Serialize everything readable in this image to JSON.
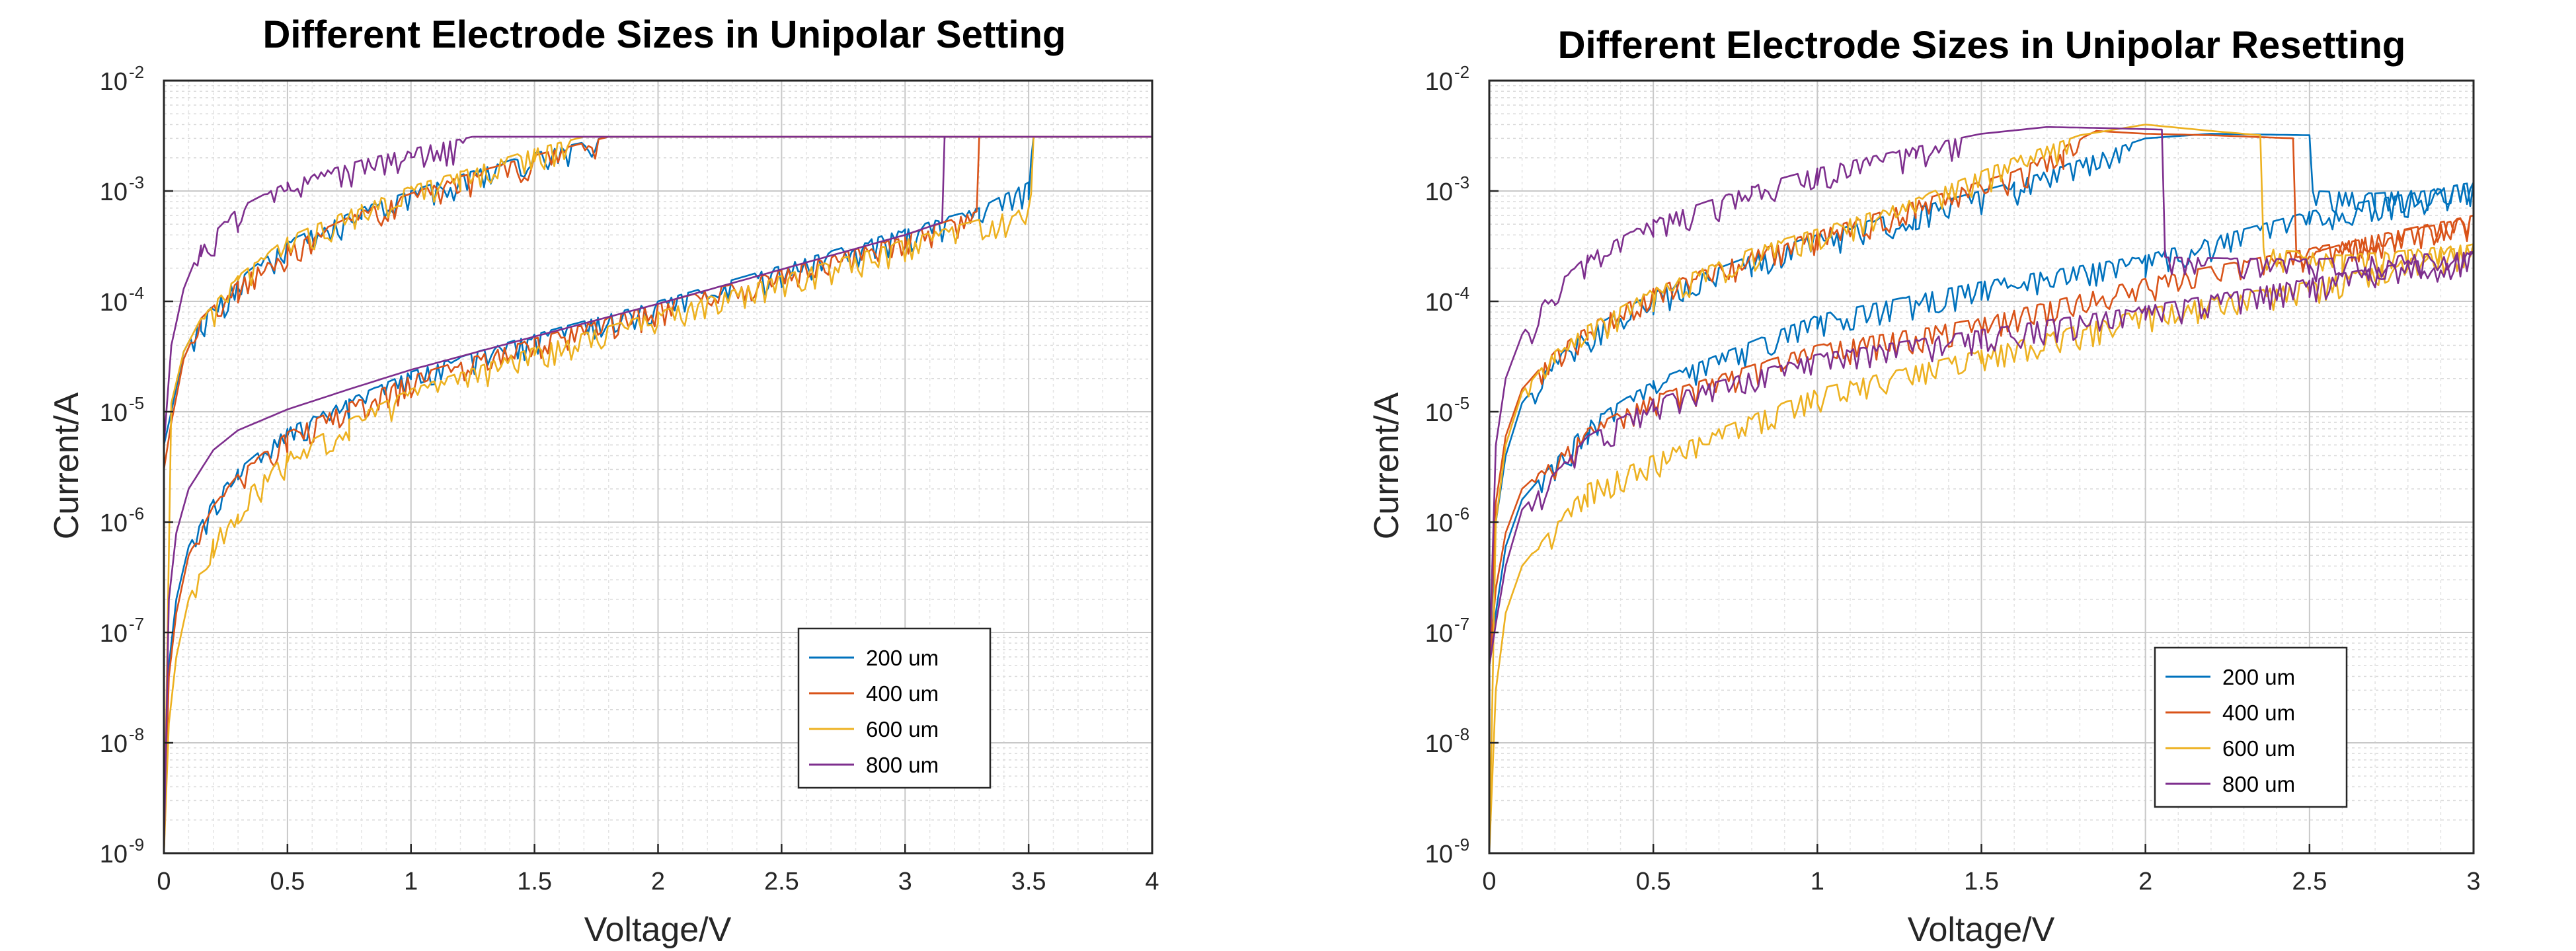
{
  "chart_data": [
    {
      "type": "line",
      "title": "Different Electrode Sizes in Unipolar Setting",
      "xlabel": "Voltage/V",
      "ylabel": "Current/A",
      "xlim": [
        0,
        4
      ],
      "ylim": [
        1e-09,
        0.01
      ],
      "yscale": "log",
      "grid": true,
      "minor_grid": true,
      "legend_position": "bottom-right",
      "xticks": [
        0,
        0.5,
        1,
        1.5,
        2,
        2.5,
        3,
        3.5,
        4
      ],
      "xtick_labels": [
        "0",
        "0.5",
        "1",
        "1.5",
        "2",
        "2.5",
        "3",
        "3.5",
        "4"
      ],
      "ytick_exponents": [
        "-9",
        "-8",
        "-7",
        "-6",
        "-5",
        "-4",
        "-3",
        "-2"
      ],
      "ytick_base": "10",
      "series": [
        {
          "name": "200 um",
          "color": "#0072BD",
          "low_branch": [
            [
              0,
              1e-09
            ],
            [
              0.02,
              5e-08
            ],
            [
              0.05,
              2e-07
            ],
            [
              0.1,
              6e-07
            ],
            [
              0.2,
              1.6e-06
            ],
            [
              0.3,
              3e-06
            ],
            [
              0.5,
              7e-06
            ],
            [
              0.75,
              1.3e-05
            ],
            [
              1.0,
              2.3e-05
            ],
            [
              1.5,
              5e-05
            ],
            [
              2.0,
              0.0001
            ],
            [
              2.5,
              0.00021
            ],
            [
              3.0,
              0.00045
            ],
            [
              3.3,
              0.0007
            ],
            [
              3.5,
              0.0012
            ],
            [
              3.52,
              0.0031
            ]
          ],
          "high_branch": [
            [
              1.8,
              0.0031
            ],
            [
              1.5,
              0.0022
            ],
            [
              1.2,
              0.0014
            ],
            [
              1.0,
              0.001
            ],
            [
              0.8,
              0.0007
            ],
            [
              0.5,
              0.00035
            ],
            [
              0.3,
              0.00016
            ],
            [
              0.15,
              7e-05
            ],
            [
              0.08,
              3.5e-05
            ],
            [
              0.03,
              1e-05
            ],
            [
              0,
              5e-06
            ]
          ],
          "compliance": 0.0031
        },
        {
          "name": "400 um",
          "color": "#D95319",
          "low_branch": [
            [
              0,
              1e-09
            ],
            [
              0.02,
              4e-08
            ],
            [
              0.05,
              1.5e-07
            ],
            [
              0.1,
              5e-07
            ],
            [
              0.2,
              1.4e-06
            ],
            [
              0.3,
              2.7e-06
            ],
            [
              0.5,
              6.5e-06
            ],
            [
              0.75,
              1.2e-05
            ],
            [
              1.0,
              2.1e-05
            ],
            [
              1.5,
              4.6e-05
            ],
            [
              2.0,
              9.5e-05
            ],
            [
              2.5,
              0.00019
            ],
            [
              3.0,
              0.0004
            ],
            [
              3.2,
              0.00056
            ],
            [
              3.29,
              0.00065
            ],
            [
              3.3,
              0.0031
            ]
          ],
          "high_branch": [
            [
              1.8,
              0.0031
            ],
            [
              1.5,
              0.0021
            ],
            [
              1.2,
              0.00135
            ],
            [
              1.0,
              0.00095
            ],
            [
              0.8,
              0.00065
            ],
            [
              0.5,
              0.00032
            ],
            [
              0.3,
              0.00015
            ],
            [
              0.15,
              7e-05
            ],
            [
              0.08,
              3e-05
            ],
            [
              0.03,
              8e-06
            ],
            [
              0,
              3e-06
            ]
          ],
          "compliance": 0.0031
        },
        {
          "name": "600 um",
          "color": "#EDB120",
          "low_branch": [
            [
              0,
              1e-09
            ],
            [
              0.02,
              1.5e-08
            ],
            [
              0.05,
              6e-08
            ],
            [
              0.1,
              2e-07
            ],
            [
              0.2,
              7e-07
            ],
            [
              0.3,
              1.6e-06
            ],
            [
              0.5,
              4.2e-06
            ],
            [
              0.75,
              8.5e-06
            ],
            [
              1.0,
              1.6e-05
            ],
            [
              1.5,
              3.8e-05
            ],
            [
              2.0,
              8e-05
            ],
            [
              2.5,
              0.00017
            ],
            [
              3.0,
              0.00036
            ],
            [
              3.3,
              0.00055
            ],
            [
              3.5,
              0.0007
            ],
            [
              3.52,
              0.0031
            ]
          ],
          "high_branch": [
            [
              1.7,
              0.0031
            ],
            [
              1.5,
              0.0024
            ],
            [
              1.2,
              0.0015
            ],
            [
              1.0,
              0.0011
            ],
            [
              0.8,
              0.00075
            ],
            [
              0.5,
              0.00038
            ],
            [
              0.3,
              0.00017
            ],
            [
              0.15,
              7e-05
            ],
            [
              0.08,
              3.5e-05
            ],
            [
              0.03,
              1.2e-05
            ],
            [
              0,
              1e-09
            ]
          ],
          "compliance": 0.0031
        },
        {
          "name": "800 um",
          "color": "#7E2F8E",
          "low_branch": [
            [
              0,
              1e-09
            ],
            [
              0.02,
              2e-07
            ],
            [
              0.05,
              8e-07
            ],
            [
              0.1,
              2e-06
            ],
            [
              0.2,
              4.5e-06
            ],
            [
              0.3,
              6.8e-06
            ],
            [
              0.5,
              1.05e-05
            ],
            [
              0.75,
              1.6e-05
            ],
            [
              1.0,
              2.4e-05
            ],
            [
              1.5,
              4.8e-05
            ],
            [
              2.0,
              9.5e-05
            ],
            [
              2.5,
              0.000195
            ],
            [
              3.0,
              0.0004
            ],
            [
              3.15,
              0.00052
            ],
            [
              3.16,
              0.0031
            ]
          ],
          "high_branch": [
            [
              1.25,
              0.0031
            ],
            [
              1.0,
              0.0024
            ],
            [
              0.8,
              0.0019
            ],
            [
              0.5,
              0.0012
            ],
            [
              0.3,
              0.0007
            ],
            [
              0.15,
              0.00032
            ],
            [
              0.08,
              0.00013
            ],
            [
              0.03,
              4e-05
            ],
            [
              0,
              5e-06
            ]
          ],
          "compliance": 0.0031
        }
      ]
    },
    {
      "type": "line",
      "title": "Different Electrode Sizes in Unipolar Resetting",
      "xlabel": "Voltage/V",
      "ylabel": "Current/A",
      "xlim": [
        0,
        3
      ],
      "ylim": [
        1e-09,
        0.01
      ],
      "yscale": "log",
      "grid": true,
      "minor_grid": true,
      "legend_position": "bottom-right",
      "xticks": [
        0,
        0.5,
        1,
        1.5,
        2,
        2.5,
        3
      ],
      "xtick_labels": [
        "0",
        "0.5",
        "1",
        "1.5",
        "2",
        "2.5",
        "3"
      ],
      "ytick_exponents": [
        "-9",
        "-8",
        "-7",
        "-6",
        "-5",
        "-4",
        "-3",
        "-2"
      ],
      "ytick_base": "10",
      "series": [
        {
          "name": "200 um",
          "color": "#0072BD",
          "high_branch": [
            [
              0,
              5e-08
            ],
            [
              0.02,
              1e-06
            ],
            [
              0.05,
              4e-06
            ],
            [
              0.1,
              1.2e-05
            ],
            [
              0.2,
              3e-05
            ],
            [
              0.3,
              5.5e-05
            ],
            [
              0.5,
              0.00012
            ],
            [
              0.8,
              0.00026
            ],
            [
              1.0,
              0.0004
            ],
            [
              1.3,
              0.0007
            ],
            [
              1.6,
              0.0012
            ],
            [
              1.8,
              0.0019
            ],
            [
              2.0,
              0.003
            ],
            [
              2.2,
              0.0033
            ],
            [
              2.5,
              0.0032
            ],
            [
              2.51,
              0.001
            ]
          ],
          "low_branch": [
            [
              2.51,
              0.001
            ],
            [
              2.7,
              0.00095
            ],
            [
              2.9,
              0.00105
            ],
            [
              3.0,
              0.0012
            ],
            [
              2.5,
              0.00065
            ],
            [
              2.0,
              0.00026
            ],
            [
              1.5,
              0.00015
            ],
            [
              1.0,
              7.5e-05
            ],
            [
              0.5,
              1.9e-05
            ],
            [
              0.3,
              8e-06
            ],
            [
              0.1,
              1.6e-06
            ],
            [
              0.05,
              6e-07
            ],
            [
              0.02,
              1.5e-07
            ],
            [
              0,
              5e-08
            ]
          ]
        },
        {
          "name": "400 um",
          "color": "#D95319",
          "high_branch": [
            [
              0,
              5e-08
            ],
            [
              0.02,
              1.5e-06
            ],
            [
              0.05,
              6e-06
            ],
            [
              0.1,
              1.6e-05
            ],
            [
              0.2,
              3.5e-05
            ],
            [
              0.3,
              6e-05
            ],
            [
              0.5,
              0.00013
            ],
            [
              0.8,
              0.00028
            ],
            [
              1.0,
              0.00043
            ],
            [
              1.3,
              0.0008
            ],
            [
              1.6,
              0.0015
            ],
            [
              1.75,
              0.0025
            ],
            [
              1.85,
              0.0035
            ],
            [
              2.0,
              0.0033
            ],
            [
              2.2,
              0.0032
            ],
            [
              2.45,
              0.003
            ],
            [
              2.46,
              0.00025
            ]
          ],
          "low_branch": [
            [
              2.46,
              0.00025
            ],
            [
              2.7,
              0.0004
            ],
            [
              2.9,
              0.0005
            ],
            [
              3.0,
              0.0006
            ],
            [
              2.5,
              0.0003
            ],
            [
              2.0,
              0.00016
            ],
            [
              1.5,
              7e-05
            ],
            [
              1.0,
              4e-05
            ],
            [
              0.5,
              1.4e-05
            ],
            [
              0.3,
              7e-06
            ],
            [
              0.1,
              2e-06
            ],
            [
              0.05,
              8e-07
            ],
            [
              0.02,
              2.5e-07
            ],
            [
              0,
              5e-08
            ]
          ]
        },
        {
          "name": "600 um",
          "color": "#EDB120",
          "high_branch": [
            [
              0,
              1e-09
            ],
            [
              0.02,
              1e-06
            ],
            [
              0.05,
              5e-06
            ],
            [
              0.1,
              1.5e-05
            ],
            [
              0.2,
              3.5e-05
            ],
            [
              0.3,
              6e-05
            ],
            [
              0.5,
              0.00013
            ],
            [
              0.8,
              0.0003
            ],
            [
              1.0,
              0.00045
            ],
            [
              1.3,
              0.00085
            ],
            [
              1.6,
              0.002
            ],
            [
              1.8,
              0.0032
            ],
            [
              2.0,
              0.004
            ],
            [
              2.2,
              0.0035
            ],
            [
              2.35,
              0.0032
            ],
            [
              2.36,
              0.0003
            ]
          ],
          "low_branch": [
            [
              2.36,
              0.0003
            ],
            [
              2.6,
              0.00026
            ],
            [
              2.8,
              0.00029
            ],
            [
              3.0,
              0.00033
            ],
            [
              2.5,
              0.00015
            ],
            [
              2.0,
              8.5e-05
            ],
            [
              1.5,
              3.6e-05
            ],
            [
              1.0,
              1.6e-05
            ],
            [
              0.5,
              4e-06
            ],
            [
              0.3,
              2.2e-06
            ],
            [
              0.1,
              4e-07
            ],
            [
              0.05,
              1.5e-07
            ],
            [
              0.02,
              3e-08
            ],
            [
              0,
              1e-09
            ]
          ]
        },
        {
          "name": "800 um",
          "color": "#7E2F8E",
          "high_branch": [
            [
              0,
              5e-08
            ],
            [
              0.02,
              5e-06
            ],
            [
              0.05,
              2e-05
            ],
            [
              0.1,
              5e-05
            ],
            [
              0.2,
              0.00014
            ],
            [
              0.3,
              0.00026
            ],
            [
              0.5,
              0.00055
            ],
            [
              0.8,
              0.0011
            ],
            [
              1.0,
              0.0016
            ],
            [
              1.3,
              0.0025
            ],
            [
              1.5,
              0.0033
            ],
            [
              1.7,
              0.0038
            ],
            [
              1.9,
              0.0037
            ],
            [
              2.05,
              0.0036
            ],
            [
              2.06,
              0.00025
            ]
          ],
          "low_branch": [
            [
              2.06,
              0.00025
            ],
            [
              2.5,
              0.00024
            ],
            [
              3.0,
              0.00028
            ],
            [
              2.5,
              0.00016
            ],
            [
              2.0,
              9e-05
            ],
            [
              1.5,
              5.5e-05
            ],
            [
              1.0,
              3.3e-05
            ],
            [
              0.5,
              1.3e-05
            ],
            [
              0.3,
              6e-06
            ],
            [
              0.1,
              1.3e-06
            ],
            [
              0.05,
              4e-07
            ],
            [
              0.02,
              1.2e-07
            ],
            [
              0,
              5e-08
            ]
          ]
        }
      ]
    }
  ]
}
